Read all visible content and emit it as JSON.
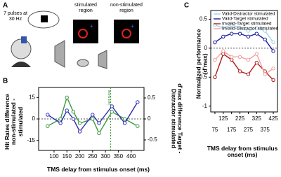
{
  "panel_a": {
    "label": "A",
    "pulse_text": "7 pulses at 30 Hz",
    "stimulated": "stimulated region",
    "non_stimulated": "non-stimulated region"
  },
  "chart_data": [
    {
      "type": "line",
      "panel": "B",
      "xlabel": "TMS delay from stimulus onset (ms)",
      "ylabel": "Hit Rates difference non-stimulated - stimulated",
      "y2label": "d'max difference Target - Distractor stimulated",
      "annotation": "last pulse",
      "vline": 320,
      "xlim": [
        40,
        450
      ],
      "xticks": [
        100,
        150,
        200,
        250,
        300,
        350,
        400
      ],
      "ylim": [
        -22,
        22
      ],
      "yticks": [
        -15,
        0,
        15
      ],
      "y2lim": [
        -0.75,
        0.75
      ],
      "y2ticks": [
        -0.5,
        0,
        0.5
      ],
      "x": [
        75,
        125,
        150,
        175,
        200,
        250,
        275,
        325,
        375,
        425
      ],
      "series": [
        {
          "color": "#3a9a3a",
          "values": [
            -5,
            0,
            15,
            5,
            -3,
            0,
            -10,
            5,
            0,
            -5
          ]
        },
        {
          "color": "#2b2bb0",
          "axis": "y2",
          "values": [
            0.1,
            -0.1,
            0.2,
            0,
            -0.3,
            0.1,
            -0.1,
            0.3,
            -0.1,
            0.4
          ]
        }
      ]
    },
    {
      "type": "line",
      "panel": "C",
      "ylabel": "Normalized performance (d'max)",
      "xlabel": "TMS delay from stimulus onset (ms)",
      "xlim": [
        50,
        450
      ],
      "xticks": [
        75,
        125,
        175,
        225,
        275,
        325,
        375,
        425
      ],
      "ylim": [
        -1.1,
        0.65
      ],
      "yticks": [
        -1,
        -0.5,
        0,
        0.5
      ],
      "x": [
        75,
        125,
        175,
        225,
        275,
        325,
        375,
        425
      ],
      "series": [
        {
          "name": "Valid-Distractor stimulated",
          "color": "#9fd3ea",
          "values": [
            0.4,
            0.35,
            0.4,
            0.35,
            0.3,
            0.35,
            0.3,
            0.1
          ]
        },
        {
          "name": "Valid-Target stimulated",
          "color": "#1a1aa0",
          "values": [
            0.1,
            0.2,
            0.25,
            0.25,
            0.2,
            0.25,
            0.15,
            -0.05
          ]
        },
        {
          "name": "Invalid-Target stimulated",
          "color": "#b01c1c",
          "values": [
            -0.5,
            -0.1,
            -0.2,
            -0.4,
            -0.45,
            -0.25,
            -0.4,
            -0.55
          ]
        },
        {
          "name": "Invalid-Distractor stimulated",
          "color": "#f0a0a0",
          "values": [
            -0.2,
            -0.05,
            -0.15,
            -0.15,
            -0.2,
            -0.1,
            -0.45,
            -0.35
          ]
        }
      ]
    }
  ]
}
